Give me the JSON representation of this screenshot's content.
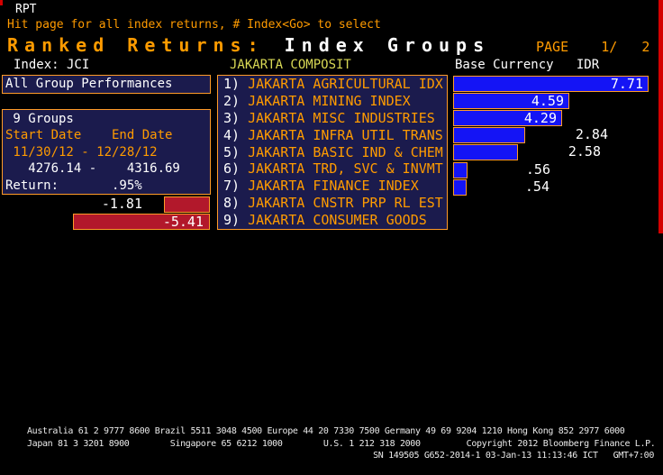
{
  "header": {
    "function_code": "RPT",
    "instruction": "Hit page for all index returns, # Index<Go> to select",
    "title_main": "Ranked Returns:",
    "title_sub": "Index Groups",
    "page_text": "PAGE    1/   2"
  },
  "subheader": {
    "index_label": "Index: JCI",
    "index_name": "JAKARTA COMPOSIT",
    "base_currency": "Base Currency   IDR"
  },
  "summary_panel": {
    "all_group_button": "All Group Performances",
    "lines": [
      {
        "text": " 9 Groups",
        "color": "white"
      },
      {
        "text": "Start Date    End Date",
        "color": "orange"
      },
      {
        "text": " 11/30/12 - 12/28/12",
        "color": "orange"
      },
      {
        "text": "   4276.14 -    4316.69",
        "color": "white"
      },
      {
        "text": "Return:       .95%",
        "color": "white"
      }
    ]
  },
  "chart_data": {
    "type": "bar",
    "orientation": "horizontal",
    "title": "Ranked Returns: Index Groups",
    "period": "11/30/12 - 12/28/12",
    "unit": "%",
    "rank_labels": [
      "1)",
      "2)",
      "3)",
      "4)",
      "5)",
      "6)",
      "7)",
      "8)",
      "9)"
    ],
    "categories": [
      "JAKARTA AGRICULTURAL IDX",
      "JAKARTA MINING INDEX",
      "JAKARTA MISC INDUSTRIES",
      "JAKARTA INFRA UTIL TRANS",
      "JAKARTA BASIC IND & CHEM",
      "JAKARTA TRD, SVC & INVMT",
      "JAKARTA FINANCE INDEX",
      "JAKARTA CNSTR PRP RL EST",
      "JAKARTA CONSUMER GOODS"
    ],
    "values": [
      7.71,
      4.59,
      4.29,
      2.84,
      2.58,
      0.56,
      0.54,
      -1.81,
      -5.41
    ],
    "value_labels": [
      "7.71",
      "4.59",
      "4.29",
      "2.84",
      "2.58",
      ".56",
      ".54",
      "-1.81",
      "-5.41"
    ],
    "label_placement": [
      "inside",
      "inside",
      "inside",
      "outside",
      "outside",
      "outside",
      "outside",
      "outside",
      "inside"
    ],
    "xlim": [
      -7.71,
      7.71
    ],
    "positive_color": "#1414f5",
    "negative_color": "#b2182b",
    "bar_border_color": "#ff9b28",
    "legend_position": "none",
    "grid": false
  },
  "footer": {
    "line1": "Australia 61 2 9777 8600 Brazil 5511 3048 4500 Europe 44 20 7330 7500 Germany 49 69 9204 1210 Hong Kong 852 2977 6000",
    "line2": "Japan 81 3 3201 8900        Singapore 65 6212 1000        U.S. 1 212 318 2000         Copyright 2012 Bloomberg Finance L.P.",
    "line3": "SN 149505 G652-2014-1 03-Jan-13 11:13:46 ICT   GMT+7:00"
  },
  "colors": {
    "background": "#000000",
    "orange_text": "#ff9b00",
    "panel_border": "#ff9b28",
    "panel_navy": "#1b1b4d",
    "index_name_yellow": "#d9d955",
    "bar_blue": "#1414f5",
    "bar_red": "#b2182b",
    "screen_red": "#d40000"
  }
}
